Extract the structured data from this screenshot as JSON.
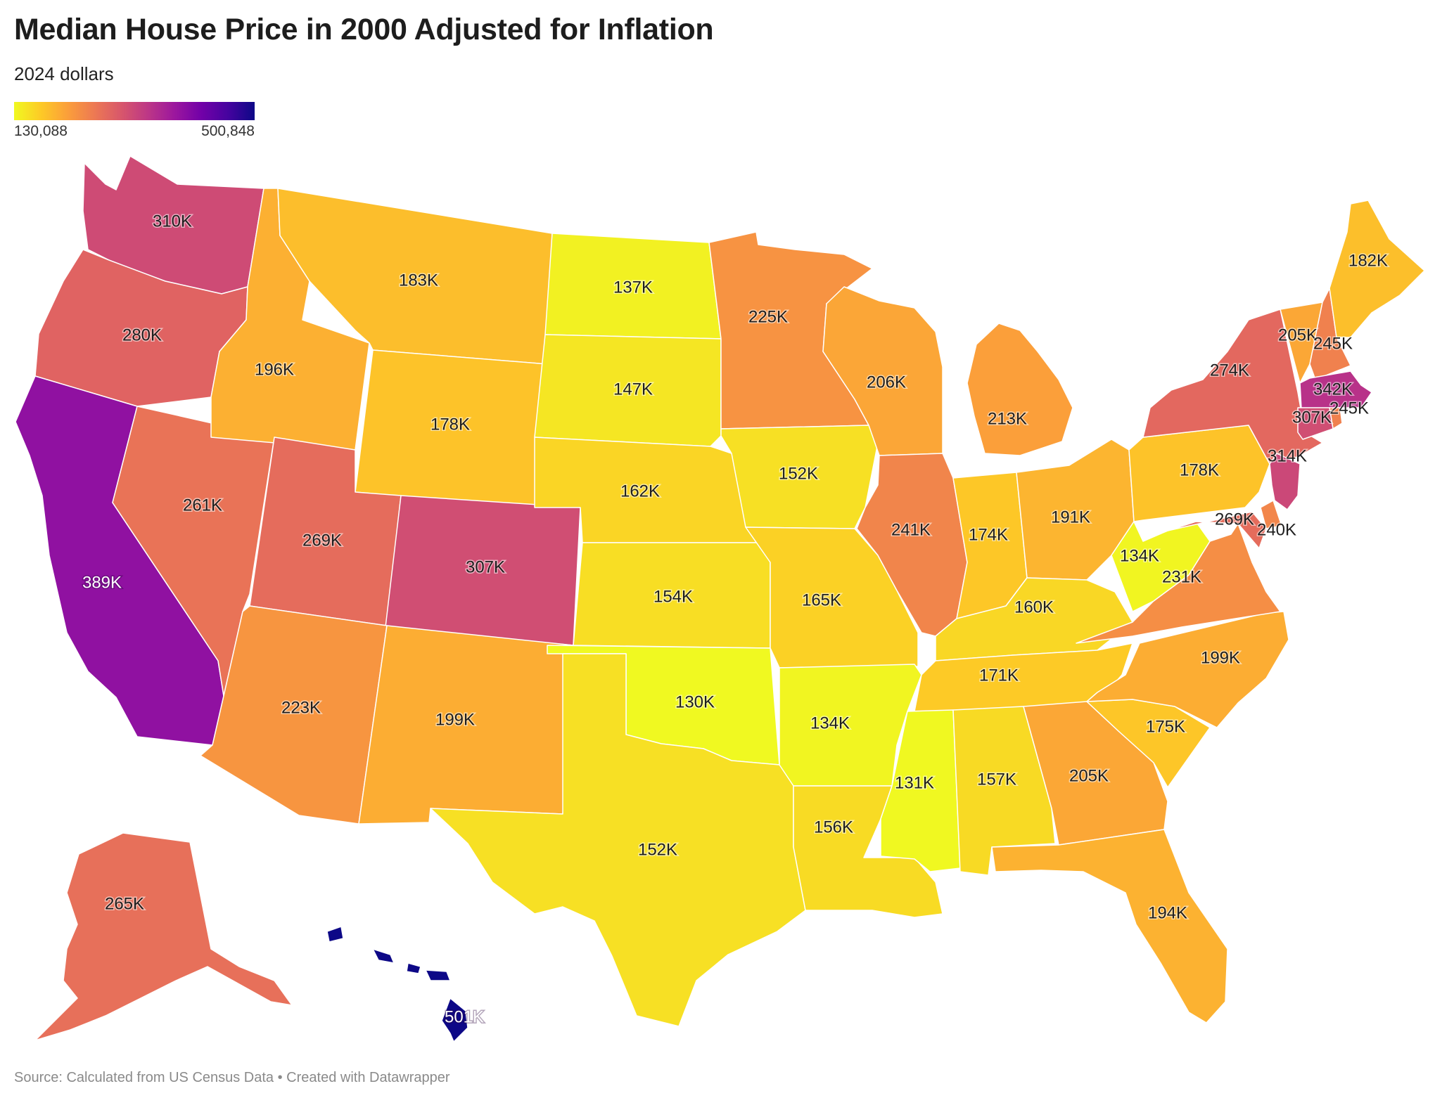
{
  "title": "Median House Price in 2000 Adjusted for Inflation",
  "subtitle": "2024 dollars",
  "legend": {
    "min_label": "130,088",
    "max_label": "500,848",
    "min_value": 130088,
    "max_value": 500848,
    "colors": [
      "#f0f921",
      "#fdca26",
      "#fb9f3a",
      "#ed7953",
      "#d8576b",
      "#bd3786",
      "#9c179e",
      "#7201a8",
      "#46039f",
      "#0d0887"
    ]
  },
  "source": "Source: Calculated from US Census Data • Created with Datawrapper",
  "chart_data": {
    "type": "choropleth",
    "unit": "2024 dollars",
    "states": [
      {
        "name": "WA",
        "value": 310000,
        "label": "310K"
      },
      {
        "name": "OR",
        "value": 280000,
        "label": "280K"
      },
      {
        "name": "CA",
        "value": 389000,
        "label": "389K"
      },
      {
        "name": "NV",
        "value": 261000,
        "label": "261K"
      },
      {
        "name": "ID",
        "value": 196000,
        "label": "196K"
      },
      {
        "name": "MT",
        "value": 183000,
        "label": "183K"
      },
      {
        "name": "WY",
        "value": 178000,
        "label": "178K"
      },
      {
        "name": "UT",
        "value": 269000,
        "label": "269K"
      },
      {
        "name": "CO",
        "value": 307000,
        "label": "307K"
      },
      {
        "name": "AZ",
        "value": 223000,
        "label": "223K"
      },
      {
        "name": "NM",
        "value": 199000,
        "label": "199K"
      },
      {
        "name": "ND",
        "value": 137000,
        "label": "137K"
      },
      {
        "name": "SD",
        "value": 147000,
        "label": "147K"
      },
      {
        "name": "NE",
        "value": 162000,
        "label": "162K"
      },
      {
        "name": "KS",
        "value": 154000,
        "label": "154K"
      },
      {
        "name": "OK",
        "value": 130000,
        "label": "130K"
      },
      {
        "name": "TX",
        "value": 152000,
        "label": "152K"
      },
      {
        "name": "MN",
        "value": 225000,
        "label": "225K"
      },
      {
        "name": "IA",
        "value": 152000,
        "label": "152K"
      },
      {
        "name": "MO",
        "value": 165000,
        "label": "165K"
      },
      {
        "name": "AR",
        "value": 134000,
        "label": "134K"
      },
      {
        "name": "LA",
        "value": 156000,
        "label": "156K"
      },
      {
        "name": "WI",
        "value": 206000,
        "label": "206K"
      },
      {
        "name": "IL",
        "value": 241000,
        "label": "241K"
      },
      {
        "name": "MI",
        "value": 213000,
        "label": "213K"
      },
      {
        "name": "IN",
        "value": 174000,
        "label": "174K"
      },
      {
        "name": "OH",
        "value": 191000,
        "label": "191K"
      },
      {
        "name": "KY",
        "value": 160000,
        "label": "160K"
      },
      {
        "name": "TN",
        "value": 171000,
        "label": "171K"
      },
      {
        "name": "MS",
        "value": 131000,
        "label": "131K"
      },
      {
        "name": "AL",
        "value": 157000,
        "label": "157K"
      },
      {
        "name": "GA",
        "value": 205000,
        "label": "205K"
      },
      {
        "name": "FL",
        "value": 194000,
        "label": "194K"
      },
      {
        "name": "SC",
        "value": 175000,
        "label": "175K"
      },
      {
        "name": "NC",
        "value": 199000,
        "label": "199K"
      },
      {
        "name": "VA",
        "value": 231000,
        "label": "231K"
      },
      {
        "name": "WV",
        "value": 134000,
        "label": "134K"
      },
      {
        "name": "PA",
        "value": 178000,
        "label": "178K"
      },
      {
        "name": "NY",
        "value": 274000,
        "label": "274K"
      },
      {
        "name": "VT",
        "value": 205000,
        "label": "205K"
      },
      {
        "name": "NH",
        "value": 245000,
        "label": "245K"
      },
      {
        "name": "ME",
        "value": 182000,
        "label": "182K"
      },
      {
        "name": "MA",
        "value": 342000,
        "label": "342K"
      },
      {
        "name": "RI",
        "value": 245000,
        "label": "245K"
      },
      {
        "name": "CT",
        "value": 307000,
        "label": "307K"
      },
      {
        "name": "NJ",
        "value": 314000,
        "label": "314K"
      },
      {
        "name": "DE",
        "value": 240000,
        "label": "240K"
      },
      {
        "name": "MD",
        "value": 269000,
        "label": "269K"
      },
      {
        "name": "AK",
        "value": 265000,
        "label": "265K"
      },
      {
        "name": "HI",
        "value": 501000,
        "label": "501K"
      }
    ]
  }
}
